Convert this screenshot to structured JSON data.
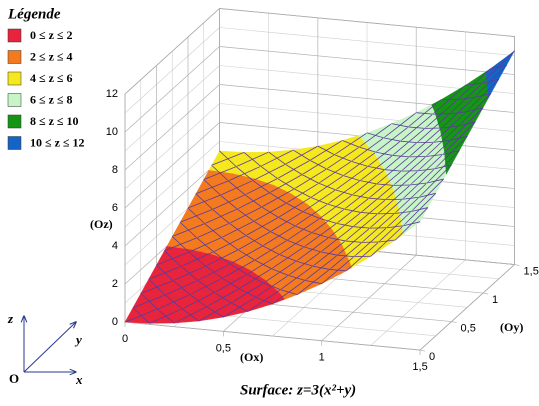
{
  "chart_data": {
    "type": "surface",
    "title": "Surface: z=3(x²+y)",
    "legend_title": "Légende",
    "bands": [
      {
        "label": "0 ≤ z ≤ 2",
        "range": [
          0,
          2
        ],
        "color": "#e8243c"
      },
      {
        "label": "2 ≤ z ≤ 4",
        "range": [
          2,
          4
        ],
        "color": "#f47a20"
      },
      {
        "label": "4 ≤ z ≤ 6",
        "range": [
          4,
          6
        ],
        "color": "#f5e81e"
      },
      {
        "label": "6 ≤ z ≤ 8",
        "range": [
          6,
          8
        ],
        "color": "#c8f5c8"
      },
      {
        "label": "8 ≤ z ≤ 10",
        "range": [
          8,
          10
        ],
        "color": "#149614"
      },
      {
        "label": "10 ≤ z ≤ 12",
        "range": [
          10,
          12
        ],
        "color": "#1464c8"
      }
    ],
    "xlabel": "(Ox)",
    "ylabel": "(Oy)",
    "zlabel": "(Oz)",
    "xlim": [
      0,
      1.5
    ],
    "ylim": [
      0,
      1.5
    ],
    "zlim": [
      0,
      12
    ],
    "xticks": [
      0,
      {
        "value": 0.5,
        "label": "0,5"
      },
      1,
      {
        "value": 1.5,
        "label": "1,5"
      }
    ],
    "yticks": [
      0,
      {
        "value": 0.5,
        "label": "0,5"
      },
      1,
      {
        "value": 1.5,
        "label": "1,5"
      }
    ],
    "zticks": [
      0,
      2,
      4,
      6,
      8,
      10,
      12
    ],
    "x": [
      0,
      0.125,
      0.25,
      0.375,
      0.5,
      0.625,
      0.75,
      0.875,
      1,
      1.125,
      1.25,
      1.375,
      1.5
    ],
    "y": [
      0,
      0.125,
      0.25,
      0.375,
      0.5,
      0.625,
      0.75,
      0.875,
      1,
      1.125,
      1.25,
      1.375,
      1.5
    ],
    "z": [
      [
        0,
        0.05,
        0.19,
        0.42,
        0.75,
        1.17,
        1.69,
        2.3,
        3,
        3.8,
        4.69,
        5.67,
        6.75
      ],
      [
        0.375,
        0.425,
        0.565,
        0.795,
        1.125,
        1.545,
        2.065,
        2.675,
        3.375,
        4.175,
        5.065,
        6.045,
        7.125
      ],
      [
        0.75,
        0.8,
        0.94,
        1.17,
        1.5,
        1.92,
        2.44,
        3.05,
        3.75,
        4.55,
        5.44,
        6.42,
        7.5
      ],
      [
        1.125,
        1.175,
        1.315,
        1.545,
        1.875,
        2.295,
        2.815,
        3.425,
        4.125,
        4.925,
        5.815,
        6.795,
        7.875
      ],
      [
        1.5,
        1.55,
        1.69,
        1.92,
        2.25,
        2.67,
        3.19,
        3.8,
        4.5,
        5.3,
        6.19,
        7.17,
        8.25
      ],
      [
        1.875,
        1.925,
        2.065,
        2.295,
        2.625,
        3.045,
        3.565,
        4.175,
        4.875,
        5.675,
        6.565,
        7.545,
        8.625
      ],
      [
        2.25,
        2.3,
        2.44,
        2.67,
        3,
        3.42,
        3.94,
        4.55,
        5.25,
        6.05,
        6.94,
        7.92,
        9
      ],
      [
        2.625,
        2.675,
        2.815,
        3.045,
        3.375,
        3.795,
        4.315,
        4.925,
        5.625,
        6.425,
        7.315,
        8.295,
        9.375
      ],
      [
        3,
        3.05,
        3.19,
        3.42,
        3.75,
        4.17,
        4.69,
        5.3,
        6,
        6.8,
        7.69,
        8.67,
        9.75
      ],
      [
        3.375,
        3.425,
        3.565,
        3.795,
        4.125,
        4.545,
        5.065,
        5.675,
        6.375,
        7.175,
        8.065,
        9.045,
        10.125
      ],
      [
        3.75,
        3.8,
        3.94,
        4.17,
        4.5,
        4.92,
        5.44,
        6.05,
        6.75,
        7.55,
        8.44,
        9.42,
        10.5
      ],
      [
        4.125,
        4.175,
        4.315,
        4.545,
        4.875,
        5.295,
        5.815,
        6.425,
        7.125,
        7.925,
        8.815,
        9.795,
        10.875
      ],
      [
        4.5,
        4.55,
        4.69,
        4.92,
        5.25,
        5.67,
        6.19,
        6.8,
        7.5,
        8.3,
        9.19,
        10.17,
        11.25
      ]
    ],
    "orientation": {
      "origin": "O",
      "x": "x",
      "y": "y",
      "z": "z"
    }
  }
}
